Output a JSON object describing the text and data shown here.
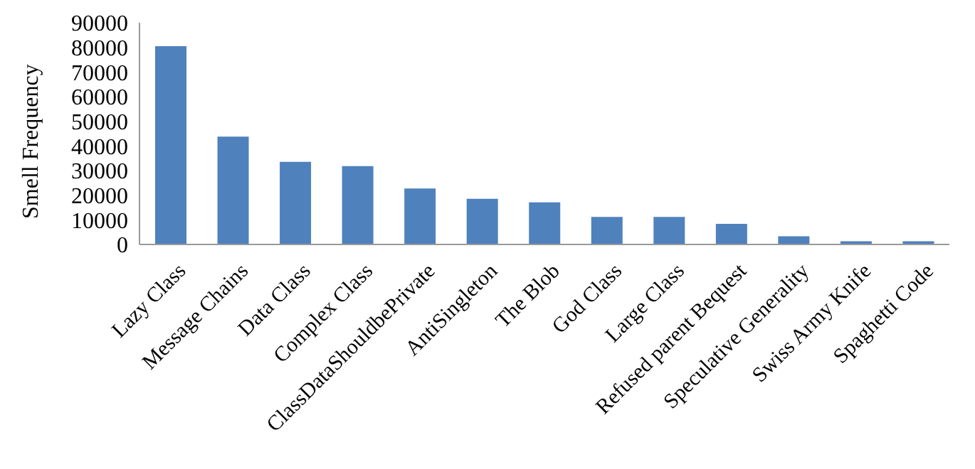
{
  "chart_data": {
    "type": "bar",
    "ylabel": "Smell Frequency",
    "categories": [
      "Lazy Class",
      "Message Chains",
      "Data Class",
      "Complex Class",
      "ClassDataShouldbePrivate",
      "AntiSingleton",
      "The Blob",
      "God Class",
      "Large Class",
      "Refused parent Bequest",
      "Speculative Generality",
      "Swiss Army Knife",
      "Spaghetti Code"
    ],
    "values": [
      80500,
      43800,
      33500,
      31800,
      22700,
      18500,
      17100,
      11200,
      11200,
      8400,
      3300,
      1300,
      1300
    ],
    "color": "#4f81bd",
    "ylim": [
      0,
      90000
    ],
    "yticks": [
      0,
      10000,
      20000,
      30000,
      40000,
      50000,
      60000,
      70000,
      80000,
      90000
    ],
    "grid": false,
    "legend": false
  }
}
